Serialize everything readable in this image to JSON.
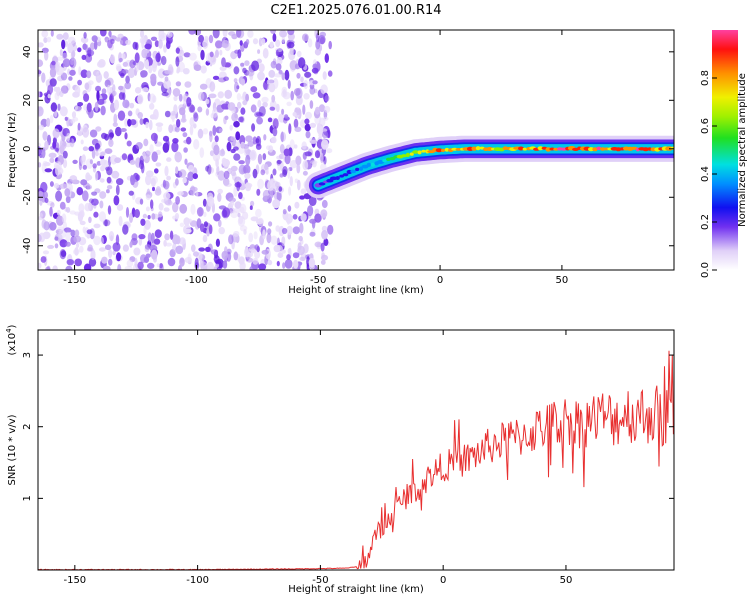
{
  "chart_data": [
    {
      "type": "heatmap",
      "title": "C2E1.2025.076.01.00.R14",
      "xlabel": "Height of straight line (km)",
      "ylabel": "Frequency (Hz)",
      "xlim": [
        -165,
        96
      ],
      "ylim": [
        -50,
        49
      ],
      "xticks": [
        -150,
        -100,
        -50,
        0,
        50
      ],
      "yticks": [
        -40,
        -20,
        0,
        20,
        40
      ],
      "grid": false,
      "noise_region_x": [
        -165,
        -45
      ],
      "track": {
        "x": [
          -50,
          -40,
          -30,
          -20,
          -10,
          0,
          10,
          25,
          50,
          75,
          96
        ],
        "y": [
          -15,
          -11,
          -7,
          -4,
          -1.5,
          -0.5,
          0,
          0,
          0,
          0,
          0
        ],
        "amplitude": [
          0.25,
          0.3,
          0.4,
          0.55,
          0.75,
          0.85,
          0.85,
          0.8,
          0.95,
          0.95,
          0.9
        ]
      },
      "colorbar": {
        "label": "Normalized spectral amplitude",
        "range": [
          0,
          1
        ],
        "ticks": [
          0.0,
          0.2,
          0.4,
          0.6,
          0.8
        ],
        "tick_labels": [
          "0.0",
          "0.2",
          "0.4",
          "0.6",
          "0.8"
        ],
        "colormap": [
          "#ffffff",
          "#d8c8f8",
          "#8040f0",
          "#2010f0",
          "#0090ff",
          "#00e0e0",
          "#20e040",
          "#90f000",
          "#f0f000",
          "#ff9000",
          "#ff2000",
          "#ff40a0"
        ]
      }
    },
    {
      "type": "line",
      "xlabel": "Height of straight line (km)",
      "ylabel": "SNR (10 * v/v)",
      "multiplier": "(x10",
      "multiplier_exp": "4",
      "multiplier_close": ")",
      "xlim": [
        -165,
        94
      ],
      "ylim": [
        0,
        3.35
      ],
      "xticks": [
        -150,
        -100,
        -50,
        0,
        50
      ],
      "yticks": [
        1,
        2,
        3
      ],
      "grid": false,
      "line_color": "#e83030",
      "series": [
        {
          "x": [
            -165,
            -140,
            -100,
            -60,
            -40,
            -35,
            -32,
            -30,
            -28,
            -26,
            -24,
            -22,
            -20,
            -18,
            -16,
            -14,
            -12,
            -10,
            -8,
            -6,
            -4,
            -2,
            0,
            5,
            10,
            15,
            20,
            25,
            30,
            35,
            40,
            45,
            50,
            55,
            60,
            65,
            70,
            75,
            80,
            85,
            90,
            92,
            94
          ],
          "y": [
            0.0,
            0.0,
            0.0,
            0.01,
            0.02,
            0.04,
            0.1,
            0.25,
            0.45,
            0.55,
            0.6,
            0.7,
            0.85,
            0.9,
            1.0,
            1.05,
            1.1,
            1.15,
            1.2,
            1.3,
            1.35,
            1.4,
            1.45,
            1.5,
            1.55,
            1.65,
            1.75,
            1.8,
            1.85,
            1.9,
            2.0,
            2.05,
            2.1,
            2.05,
            2.1,
            2.15,
            2.1,
            2.2,
            2.15,
            2.2,
            2.1,
            2.2,
            2.0
          ]
        }
      ]
    }
  ]
}
